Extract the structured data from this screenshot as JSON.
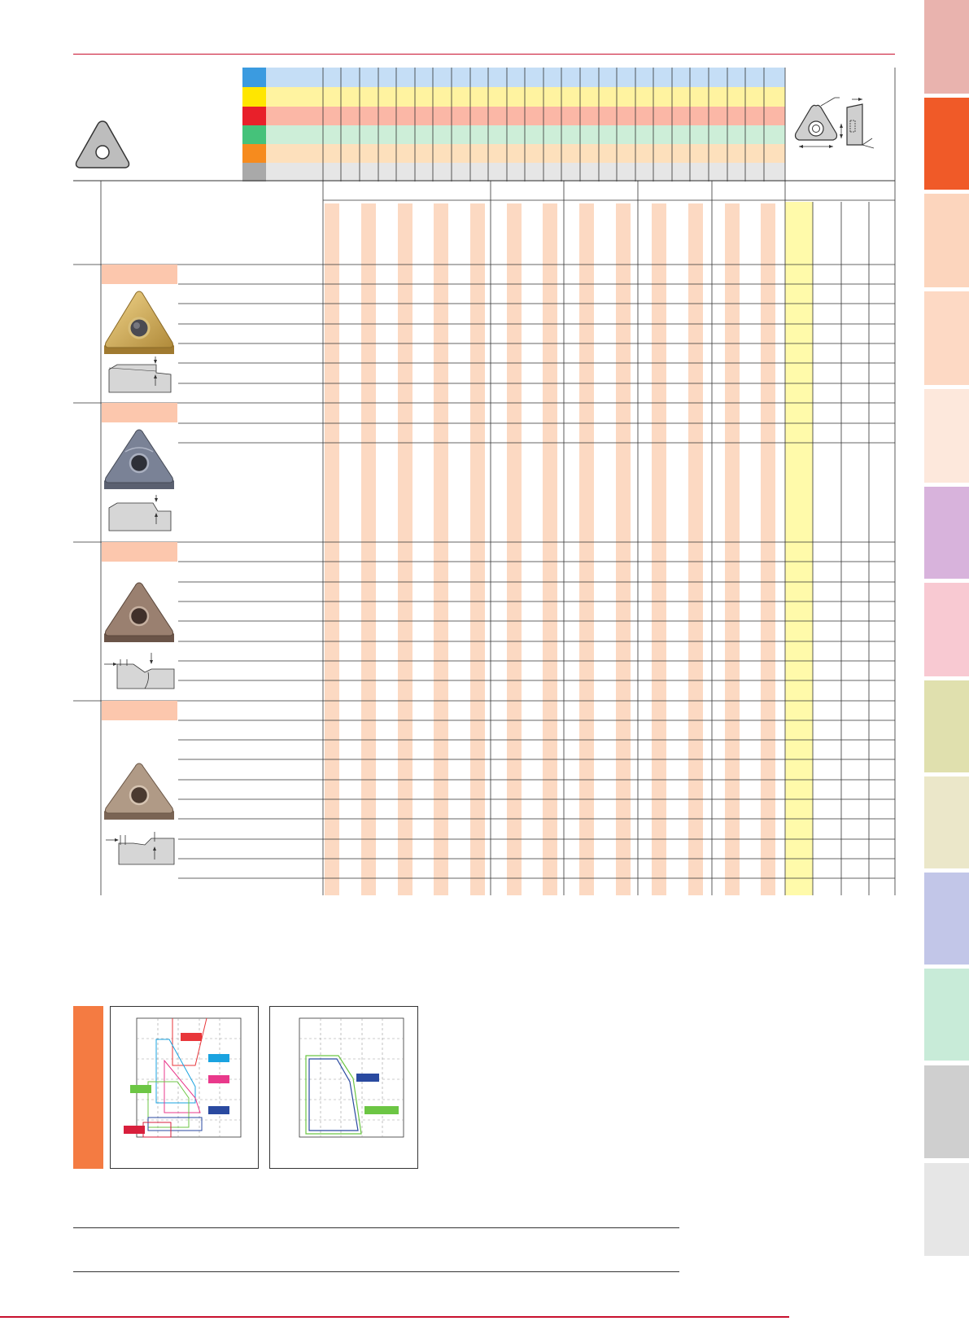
{
  "colors": {
    "accent_red": "#c8102e",
    "material_rows": [
      "#3b9be0",
      "#ffe600",
      "#e8202a",
      "#45c27a",
      "#f68b1e",
      "#a9a9a9"
    ],
    "material_bands": [
      "#c5def6",
      "#fff3a0",
      "#fbb7a6",
      "#cdeed8",
      "#fde0bc",
      "#e6e6e6"
    ],
    "peach": "#fcd9c2",
    "yellow_col": "#fffaaa",
    "side_tabs": [
      "#e9b3ae",
      "#f05a28",
      "#fcd5bd",
      "#fdd9c4",
      "#fde8dc",
      "#d8b3dc",
      "#f8c9d2",
      "#e0e0ae",
      "#ebe7c9",
      "#c2c6e8",
      "#c8ebd8",
      "#cfcfcf",
      "#e6e6e6"
    ],
    "chart_lines": {
      "red": "#e8363a",
      "cyan": "#1aa3e0",
      "magenta": "#e9398b",
      "green": "#6cc644",
      "navy": "#2a4aa0",
      "crimson": "#d81f3c"
    }
  },
  "icons": {
    "insert_outline": "triangle-insert-icon",
    "insert_dimension": "insert-dimension-diagram-icon",
    "chipbreaker_profile": "chipbreaker-profile-icon",
    "insert_photo": "insert-photo-icon"
  }
}
